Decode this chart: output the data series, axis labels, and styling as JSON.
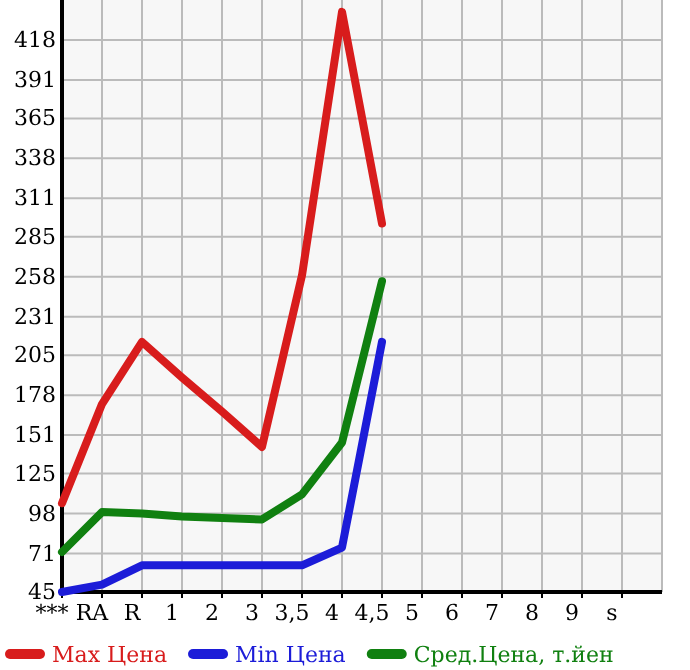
{
  "chart_data": {
    "type": "line",
    "categories": [
      "***",
      "RA",
      "R",
      "1",
      "2",
      "3",
      "3,5",
      "4",
      "4,5",
      "5",
      "6",
      "7",
      "8",
      "9",
      "s"
    ],
    "series": [
      {
        "name": "Max Цена",
        "color": "#d81c1c",
        "values": [
          105,
          172,
          214,
          190,
          167,
          143,
          259,
          437,
          294,
          null,
          null,
          null,
          null,
          null,
          null
        ]
      },
      {
        "name": "Min Цена",
        "color": "#1c1cd8",
        "values": [
          45,
          50,
          63,
          63,
          63,
          63,
          63,
          75,
          214,
          null,
          null,
          null,
          null,
          null,
          null
        ]
      },
      {
        "name": "Сред.Цена, т.йен",
        "color": "#108010",
        "values": [
          72,
          99,
          98,
          96,
          95,
          94,
          111,
          146,
          255,
          null,
          null,
          null,
          null,
          null,
          null
        ]
      }
    ],
    "ylim": [
      45,
      445
    ],
    "yticks": [
      45,
      71,
      98,
      125,
      151,
      178,
      205,
      231,
      258,
      285,
      311,
      338,
      365,
      391,
      418
    ],
    "grid": true,
    "legend": "bottom",
    "marker": "none",
    "line_style": "solid"
  }
}
